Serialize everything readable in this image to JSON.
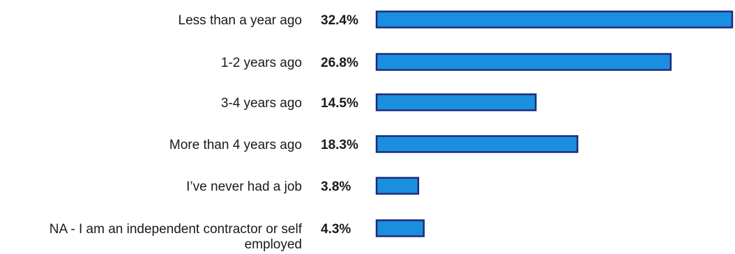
{
  "chart_data": {
    "type": "bar",
    "orientation": "horizontal",
    "title": "",
    "xlabel": "",
    "ylabel": "",
    "grid": false,
    "legend": "none",
    "categories": [
      "Less than a year ago",
      "1-2 years ago",
      "3-4 years ago",
      "More than 4 years ago",
      "I’ve never had a job",
      "NA - I am an independent contractor or self employed"
    ],
    "category_lines": [
      [
        "Less than a year ago"
      ],
      [
        "1-2 years ago"
      ],
      [
        "3-4 years ago"
      ],
      [
        "More than 4 years ago"
      ],
      [
        "I’ve never had a job"
      ],
      [
        "NA - I am an independent contractor or self",
        "employed"
      ]
    ],
    "values": [
      32.4,
      26.8,
      14.5,
      18.3,
      3.8,
      4.3
    ],
    "value_labels": [
      "32.4%",
      "26.8%",
      "14.5%",
      "18.3%",
      "3.8%",
      "4.3%"
    ],
    "unit": "%",
    "colors": {
      "bar_fill": "#1a8fe0",
      "bar_stroke": "#1e2a78",
      "text": "#1a1a1a"
    }
  }
}
